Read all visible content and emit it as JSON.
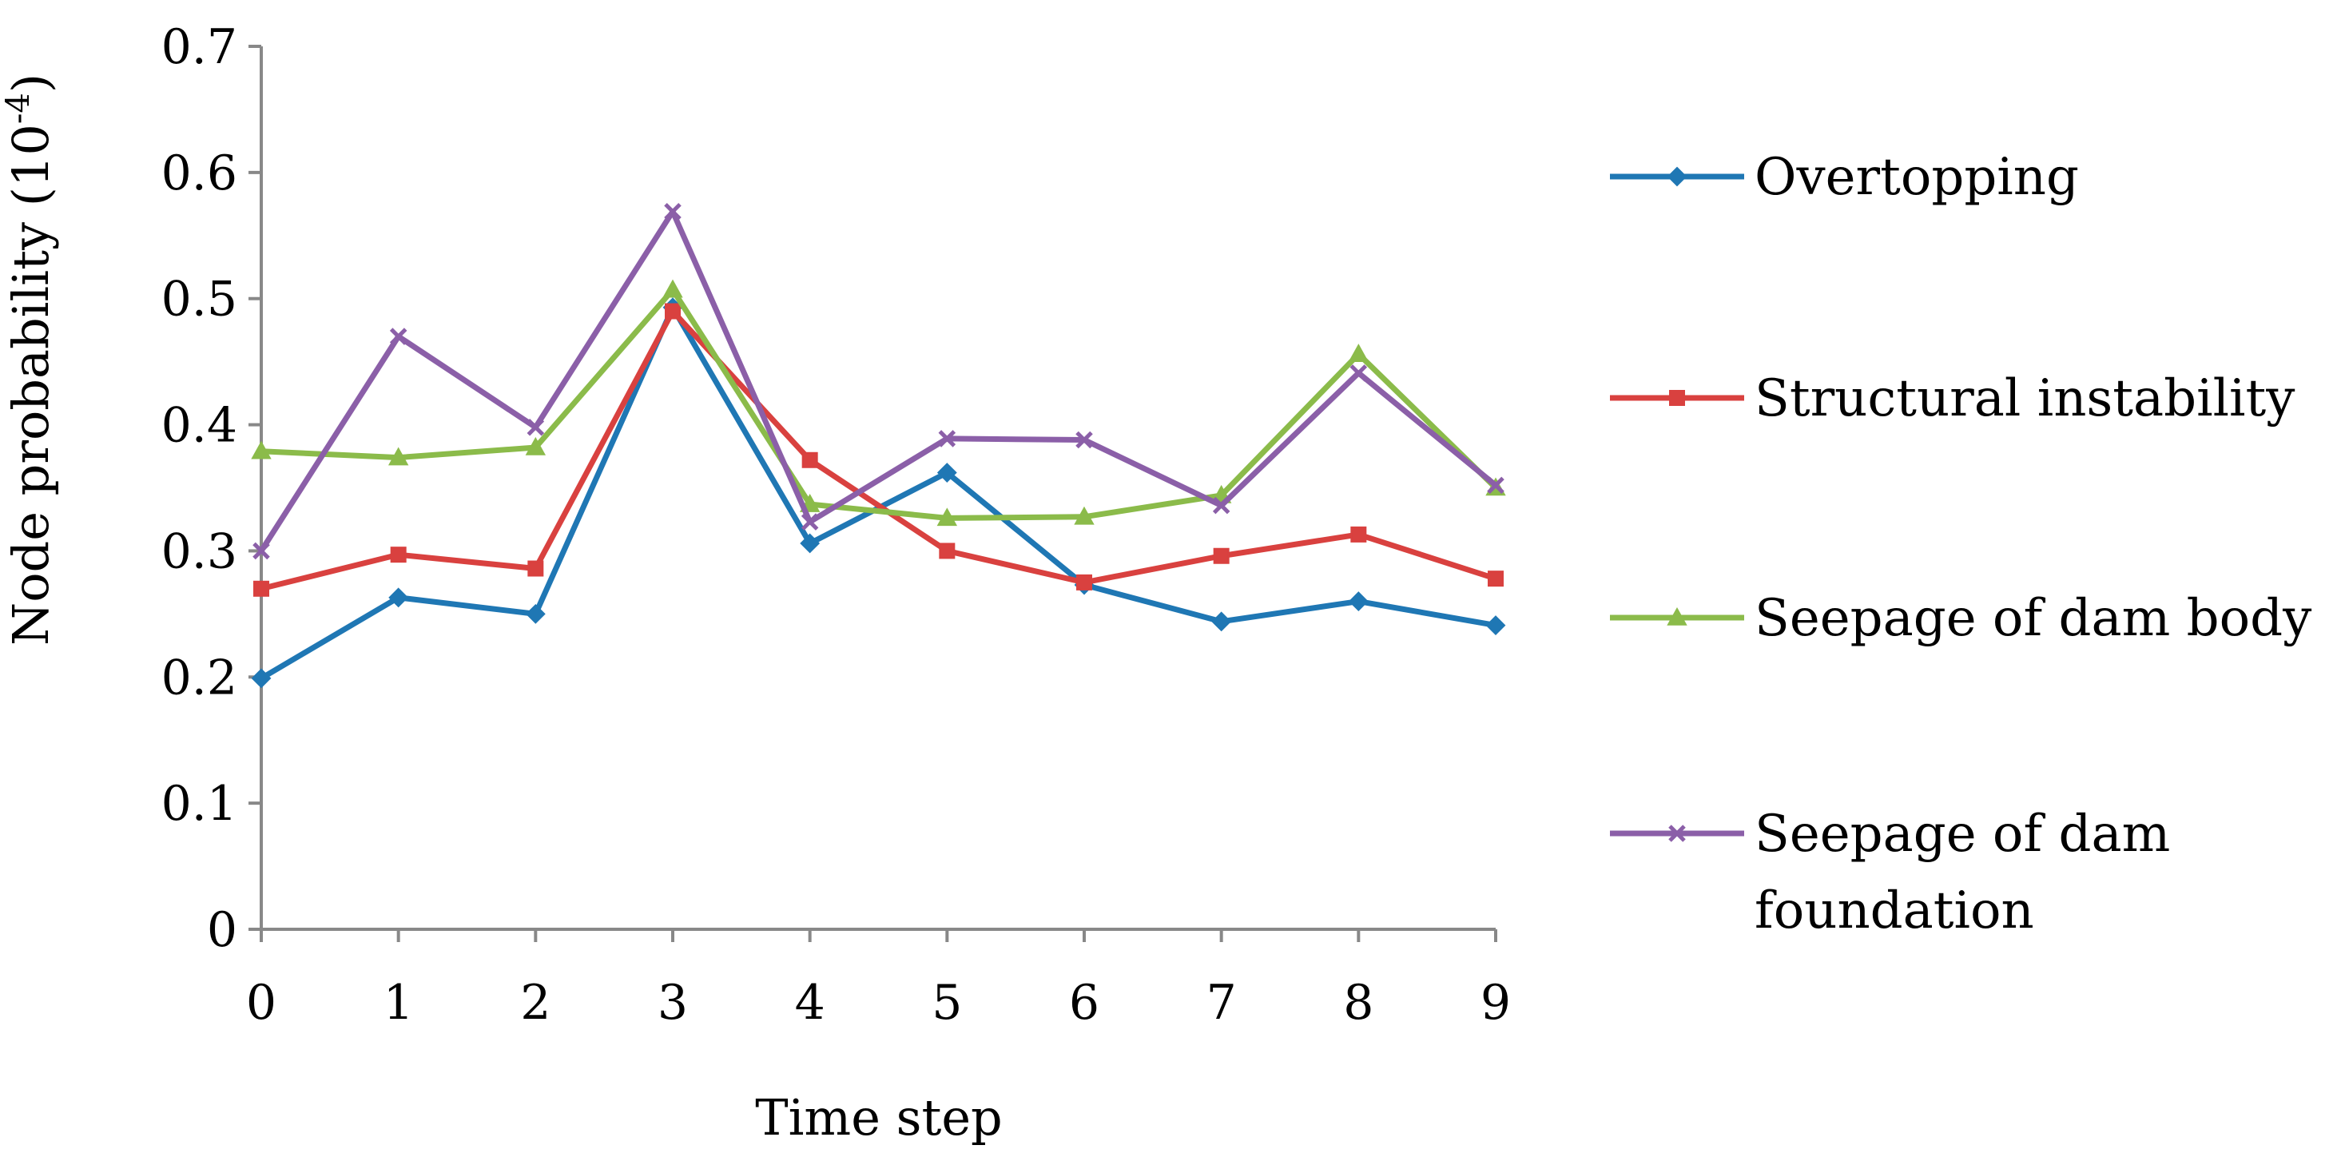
{
  "chart_data": {
    "type": "line",
    "title": "",
    "xlabel": "Time step",
    "ylabel_base": "Node probability (10",
    "ylabel_exp": "-4",
    "ylabel_close": ")",
    "ylim": [
      0,
      0.7
    ],
    "y_ticks": [
      0,
      0.1,
      0.2,
      0.3,
      0.4,
      0.5,
      0.6,
      0.7
    ],
    "y_tick_labels": [
      "0",
      "0.1",
      "0.2",
      "0.3",
      "0.4",
      "0.5",
      "0.6",
      "0.7"
    ],
    "x": [
      0,
      1,
      2,
      3,
      4,
      5,
      6,
      7,
      8,
      9
    ],
    "x_tick_labels": [
      "0",
      "1",
      "2",
      "3",
      "4",
      "5",
      "6",
      "7",
      "8",
      "9"
    ],
    "grid": false,
    "legend_position": "right",
    "series": [
      {
        "name": "Overtopping",
        "label_lines": [
          "Overtopping"
        ],
        "color": "#1f77b4",
        "marker": "diamond",
        "values": [
          0.199,
          0.263,
          0.25,
          0.493,
          0.306,
          0.362,
          0.273,
          0.244,
          0.26,
          0.241
        ]
      },
      {
        "name": "Structural instability",
        "label_lines": [
          "Structural instability"
        ],
        "color": "#d9413f",
        "marker": "square",
        "values": [
          0.27,
          0.297,
          0.286,
          0.49,
          0.372,
          0.3,
          0.275,
          0.296,
          0.313,
          0.278
        ]
      },
      {
        "name": "Seepage of dam body",
        "label_lines": [
          "Seepage of dam body"
        ],
        "color": "#8bbb4a",
        "marker": "triangle",
        "values": [
          0.379,
          0.374,
          0.382,
          0.507,
          0.337,
          0.326,
          0.327,
          0.344,
          0.456,
          0.35
        ]
      },
      {
        "name": "Seepage of dam foundation",
        "label_lines": [
          "Seepage of dam",
          "foundation"
        ],
        "color": "#8b5fa8",
        "marker": "x",
        "values": [
          0.3,
          0.47,
          0.398,
          0.569,
          0.323,
          0.389,
          0.388,
          0.336,
          0.441,
          0.352
        ]
      }
    ]
  }
}
